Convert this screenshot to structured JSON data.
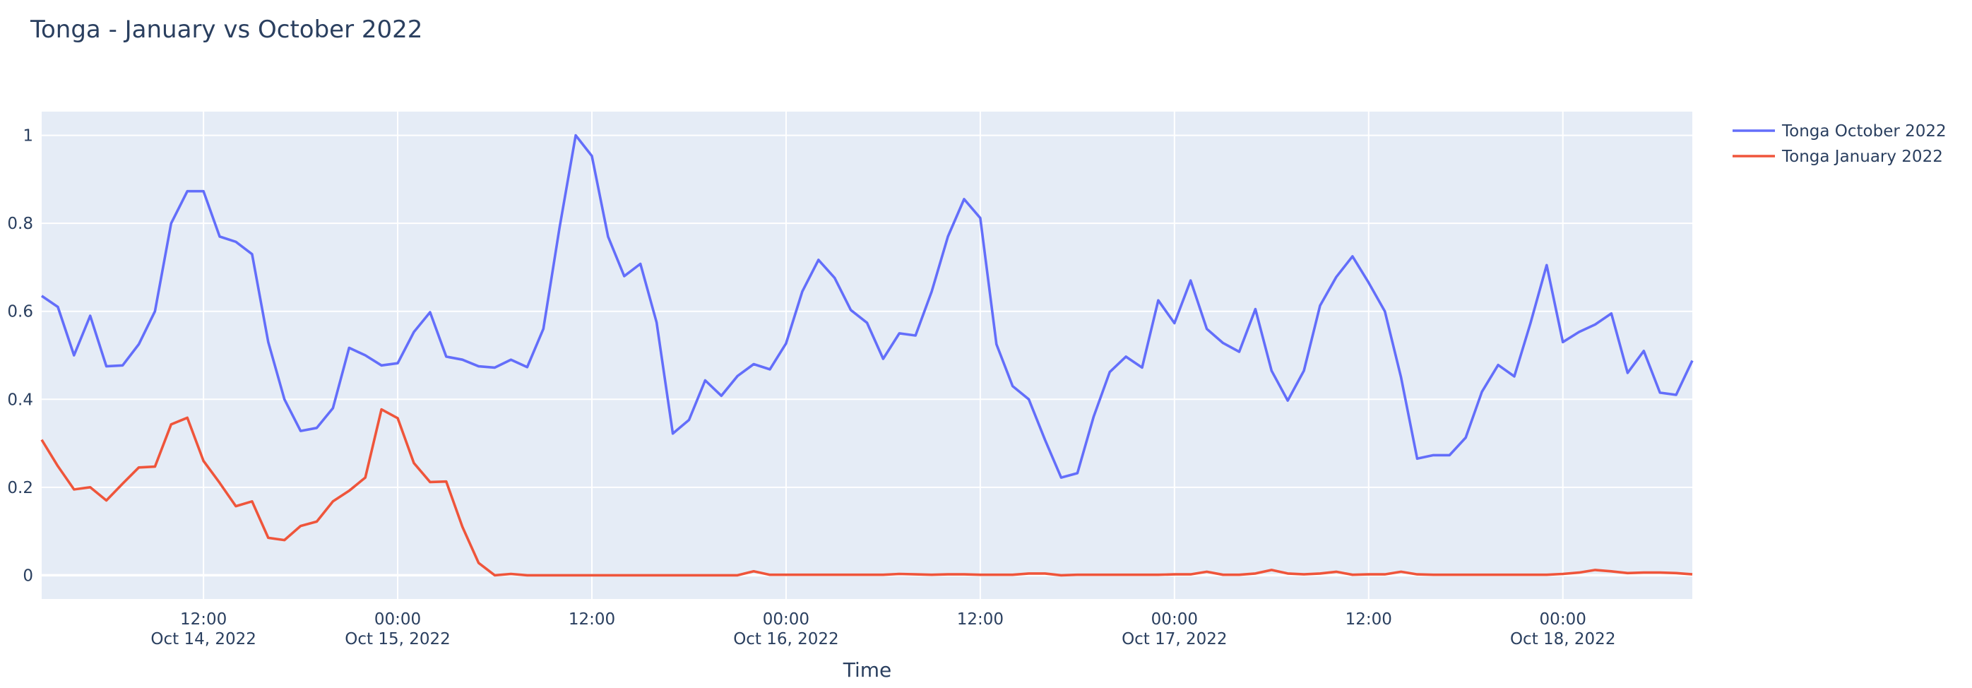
{
  "chart_data": {
    "type": "line",
    "title": "Tonga - January vs October 2022",
    "xlabel": "Time",
    "ylabel": "",
    "xlim": [
      "2022-10-14T02:00",
      "2022-10-18T08:00"
    ],
    "ylim": [
      -0.054,
      1.054
    ],
    "grid": true,
    "legend_position": "top-right outside",
    "background_color": "#e5ecf6",
    "y_ticks": [
      {
        "value": 0,
        "label": "0"
      },
      {
        "value": 0.2,
        "label": "0.2"
      },
      {
        "value": 0.4,
        "label": "0.4"
      },
      {
        "value": 0.6,
        "label": "0.6"
      },
      {
        "value": 0.8,
        "label": "0.8"
      },
      {
        "value": 1,
        "label": "1"
      }
    ],
    "x_ticks": [
      {
        "at": "2022-10-14T12:00",
        "label": "12:00",
        "sublabel": "Oct 14, 2022"
      },
      {
        "at": "2022-10-15T00:00",
        "label": "00:00",
        "sublabel": "Oct 15, 2022"
      },
      {
        "at": "2022-10-15T12:00",
        "label": "12:00",
        "sublabel": ""
      },
      {
        "at": "2022-10-16T00:00",
        "label": "00:00",
        "sublabel": "Oct 16, 2022"
      },
      {
        "at": "2022-10-16T12:00",
        "label": "12:00",
        "sublabel": ""
      },
      {
        "at": "2022-10-17T00:00",
        "label": "00:00",
        "sublabel": "Oct 17, 2022"
      },
      {
        "at": "2022-10-17T12:00",
        "label": "12:00",
        "sublabel": ""
      },
      {
        "at": "2022-10-18T00:00",
        "label": "00:00",
        "sublabel": "Oct 18, 2022"
      }
    ],
    "x": [
      "2022-10-14T02:00",
      "2022-10-14T03:00",
      "2022-10-14T04:00",
      "2022-10-14T05:00",
      "2022-10-14T06:00",
      "2022-10-14T07:00",
      "2022-10-14T08:00",
      "2022-10-14T09:00",
      "2022-10-14T10:00",
      "2022-10-14T11:00",
      "2022-10-14T12:00",
      "2022-10-14T13:00",
      "2022-10-14T14:00",
      "2022-10-14T15:00",
      "2022-10-14T16:00",
      "2022-10-14T17:00",
      "2022-10-14T18:00",
      "2022-10-14T19:00",
      "2022-10-14T20:00",
      "2022-10-14T21:00",
      "2022-10-14T22:00",
      "2022-10-14T23:00",
      "2022-10-15T00:00",
      "2022-10-15T01:00",
      "2022-10-15T02:00",
      "2022-10-15T03:00",
      "2022-10-15T04:00",
      "2022-10-15T05:00",
      "2022-10-15T06:00",
      "2022-10-15T07:00",
      "2022-10-15T08:00",
      "2022-10-15T09:00",
      "2022-10-15T10:00",
      "2022-10-15T11:00",
      "2022-10-15T12:00",
      "2022-10-15T13:00",
      "2022-10-15T14:00",
      "2022-10-15T15:00",
      "2022-10-15T16:00",
      "2022-10-15T17:00",
      "2022-10-15T18:00",
      "2022-10-15T19:00",
      "2022-10-15T20:00",
      "2022-10-15T21:00",
      "2022-10-15T22:00",
      "2022-10-15T23:00",
      "2022-10-16T00:00",
      "2022-10-16T01:00",
      "2022-10-16T02:00",
      "2022-10-16T03:00",
      "2022-10-16T04:00",
      "2022-10-16T05:00",
      "2022-10-16T06:00",
      "2022-10-16T07:00",
      "2022-10-16T08:00",
      "2022-10-16T09:00",
      "2022-10-16T10:00",
      "2022-10-16T11:00",
      "2022-10-16T12:00",
      "2022-10-16T13:00",
      "2022-10-16T14:00",
      "2022-10-16T15:00",
      "2022-10-16T16:00",
      "2022-10-16T17:00",
      "2022-10-16T18:00",
      "2022-10-16T19:00",
      "2022-10-16T20:00",
      "2022-10-16T21:00",
      "2022-10-16T22:00",
      "2022-10-16T23:00",
      "2022-10-17T00:00",
      "2022-10-17T01:00",
      "2022-10-17T02:00",
      "2022-10-17T03:00",
      "2022-10-17T04:00",
      "2022-10-17T05:00",
      "2022-10-17T06:00",
      "2022-10-17T07:00",
      "2022-10-17T08:00",
      "2022-10-17T09:00",
      "2022-10-17T10:00",
      "2022-10-17T11:00",
      "2022-10-17T12:00",
      "2022-10-17T13:00",
      "2022-10-17T14:00",
      "2022-10-17T15:00",
      "2022-10-17T16:00",
      "2022-10-17T17:00",
      "2022-10-17T18:00",
      "2022-10-17T19:00",
      "2022-10-17T20:00",
      "2022-10-17T21:00",
      "2022-10-17T22:00",
      "2022-10-17T23:00",
      "2022-10-18T00:00",
      "2022-10-18T01:00",
      "2022-10-18T02:00",
      "2022-10-18T03:00",
      "2022-10-18T04:00",
      "2022-10-18T05:00",
      "2022-10-18T06:00",
      "2022-10-18T07:00",
      "2022-10-18T08:00"
    ],
    "series": [
      {
        "name": "Tonga October 2022",
        "color": "#636efa",
        "values": [
          0.635,
          0.61,
          0.5,
          0.59,
          0.475,
          0.477,
          0.525,
          0.6,
          0.8,
          0.873,
          0.873,
          0.77,
          0.758,
          0.73,
          0.53,
          0.4,
          0.328,
          0.335,
          0.38,
          0.517,
          0.5,
          0.477,
          0.482,
          0.553,
          0.598,
          0.497,
          0.49,
          0.475,
          0.472,
          0.49,
          0.473,
          0.56,
          0.79,
          1.0,
          0.953,
          0.77,
          0.68,
          0.708,
          0.575,
          0.322,
          0.353,
          0.443,
          0.408,
          0.453,
          0.48,
          0.468,
          0.527,
          0.645,
          0.717,
          0.676,
          0.603,
          0.574,
          0.492,
          0.55,
          0.545,
          0.645,
          0.77,
          0.855,
          0.812,
          0.525,
          0.43,
          0.4,
          0.308,
          0.222,
          0.232,
          0.36,
          0.462,
          0.497,
          0.472,
          0.625,
          0.573,
          0.67,
          0.56,
          0.528,
          0.508,
          0.605,
          0.465,
          0.397,
          0.465,
          0.613,
          0.678,
          0.725,
          0.665,
          0.6,
          0.45,
          0.265,
          0.273,
          0.273,
          0.313,
          0.417,
          0.478,
          0.452,
          0.573,
          0.705,
          0.53,
          0.553,
          0.57,
          0.595,
          0.46,
          0.51,
          0.415,
          0.41,
          0.488
        ]
      },
      {
        "name": "Tonga January 2022",
        "color": "#ef553b",
        "values": [
          0.308,
          0.248,
          0.195,
          0.2,
          0.17,
          0.208,
          0.245,
          0.247,
          0.343,
          0.358,
          0.26,
          0.21,
          0.157,
          0.168,
          0.085,
          0.08,
          0.112,
          0.122,
          0.168,
          0.192,
          0.222,
          0.377,
          0.357,
          0.255,
          0.212,
          0.213,
          0.11,
          0.028,
          0,
          0.003,
          0,
          0,
          0,
          0,
          0,
          0,
          0,
          0,
          0,
          0,
          0,
          0,
          0,
          0,
          0.009,
          0.001,
          0.001,
          0.001,
          0.001,
          0.001,
          0.001,
          0.001,
          0.001,
          0.003,
          0.002,
          0.001,
          0.002,
          0.002,
          0.001,
          0.001,
          0.001,
          0.004,
          0.004,
          0,
          0.001,
          0.001,
          0.001,
          0.001,
          0.001,
          0.001,
          0.002,
          0.002,
          0.008,
          0.001,
          0.001,
          0.004,
          0.012,
          0.004,
          0.002,
          0.004,
          0.008,
          0.001,
          0.002,
          0.002,
          0.008,
          0.002,
          0.001,
          0.001,
          0.001,
          0.001,
          0.001,
          0.001,
          0.001,
          0.001,
          0.003,
          0.006,
          0.012,
          0.009,
          0.005,
          0.006,
          0.006,
          0.005,
          0.002
        ]
      }
    ]
  }
}
